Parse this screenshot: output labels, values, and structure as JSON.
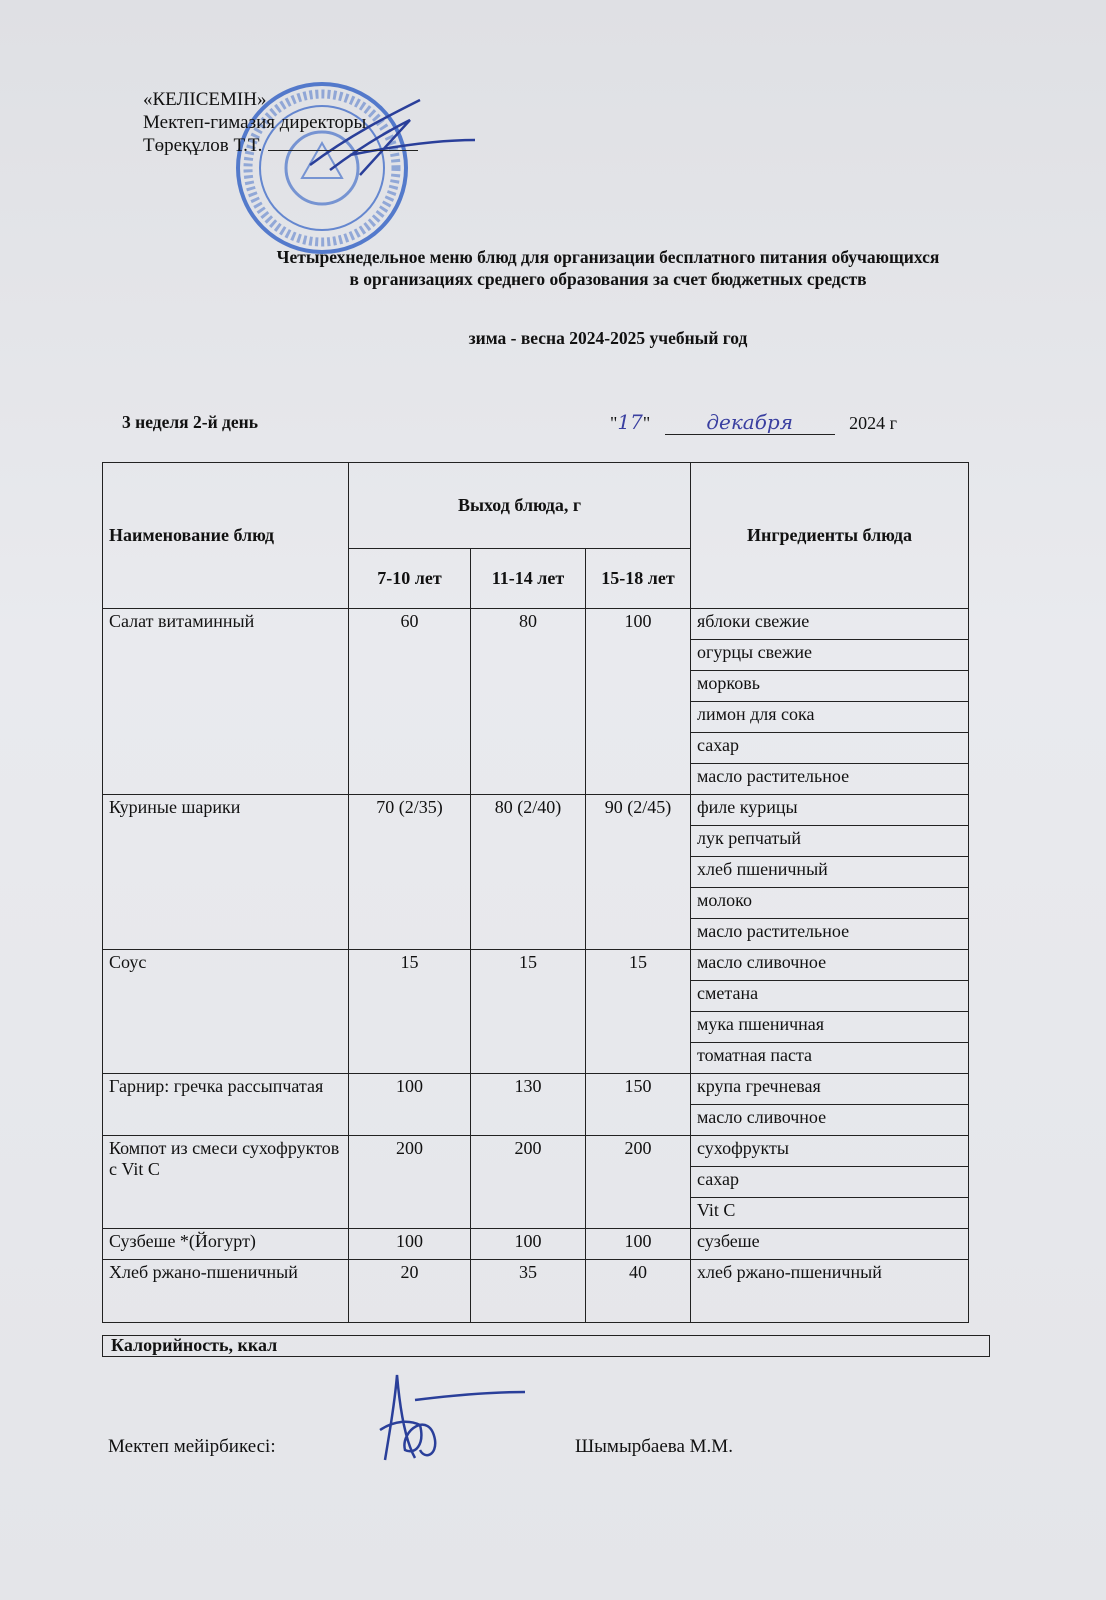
{
  "approval": {
    "line1": "«КЕЛІСЕМІН»",
    "line2": "Мектеп-гимазия директоры",
    "line3": "Төреқұлов Т.Т."
  },
  "title": {
    "line1": "Четырехнедельное меню блюд для организации бесплатного питания обучающихся",
    "line2": "в организациях среднего образования за счет бюджетных средств"
  },
  "season": "зима - весна 2024-2025 учебный год",
  "week_day": "3 неделя 2-й день",
  "date": {
    "day": "17",
    "month": "декабря",
    "year": "2024 г",
    "q_open": "\"",
    "q_close": "\""
  },
  "table": {
    "headers": {
      "name": "Наименование блюд",
      "output": "Выход блюда, г",
      "age1": "7-10 лет",
      "age2": "11-14 лет",
      "age3": "15-18 лет",
      "ingredients": "Ингредиенты блюда"
    },
    "dishes": [
      {
        "name": "Салат витаминный",
        "v1": "60",
        "v2": "80",
        "v3": "100",
        "ingredients": [
          "яблоки свежие",
          "огурцы свежие",
          "морковь",
          "лимон для сока",
          "сахар",
          "масло растительное"
        ]
      },
      {
        "name": "Куриные шарики",
        "v1": "70 (2/35)",
        "v2": "80 (2/40)",
        "v3": "90 (2/45)",
        "ingredients": [
          "филе курицы",
          "лук репчатый",
          "хлеб пшеничный",
          "молоко",
          "масло растительное"
        ]
      },
      {
        "name": "Соус",
        "v1": "15",
        "v2": "15",
        "v3": "15",
        "ingredients": [
          "масло сливочное",
          "сметана",
          "мука пшеничная",
          "томатная паста"
        ]
      },
      {
        "name": "Гарнир: гречка рассыпчатая",
        "v1": "100",
        "v2": "130",
        "v3": "150",
        "ingredients": [
          "крупа гречневая",
          "масло сливочное"
        ]
      },
      {
        "name": "Компот из смеси сухофруктов с Vit C",
        "v1": "200",
        "v2": "200",
        "v3": "200",
        "ingredients": [
          "сухофрукты",
          "сахар",
          "Vit C"
        ]
      },
      {
        "name": "Сузбеше *(Йогурт)",
        "v1": "100",
        "v2": "100",
        "v3": "100",
        "ingredients": [
          "сузбеше"
        ]
      },
      {
        "name": "Хлеб ржано-пшеничный",
        "v1": "20",
        "v2": "35",
        "v3": "40",
        "ingredients": [
          "хлеб ржано-пшеничный"
        ]
      }
    ],
    "calories_label": "Калорийность, ккал"
  },
  "nurse": {
    "label": "Мектеп мейірбикесі:",
    "name": "Шымырбаева М.М."
  },
  "stamp": {
    "text": "ҚАЗАҚСТАН РЕСПУБЛИКАСЫ БІЛІМ БӨЛІМІ АЛМАТЫ ҚАЛАЛЫҚ",
    "color": "#2f5fc4"
  }
}
